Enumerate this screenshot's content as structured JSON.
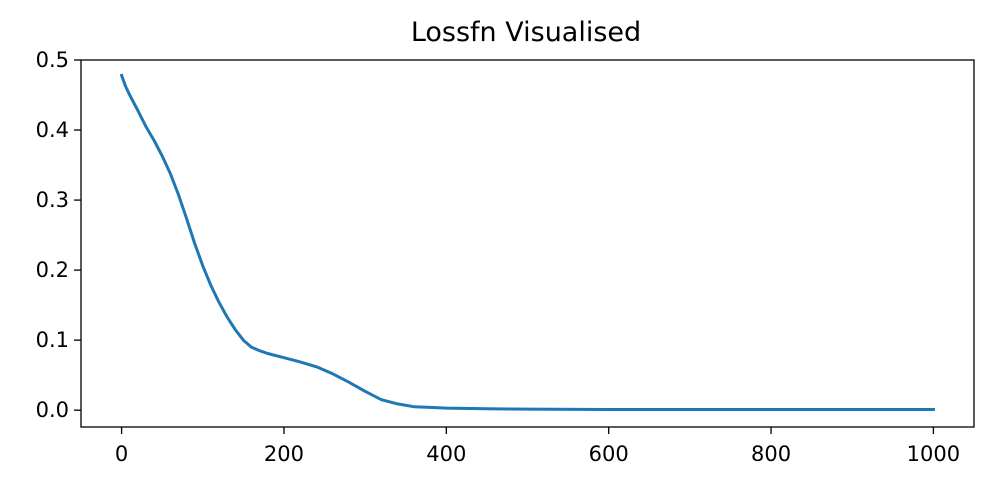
{
  "chart_data": {
    "type": "line",
    "title": "Lossfn Visualised",
    "xlabel": "",
    "ylabel": "",
    "xlim": [
      -50,
      1050
    ],
    "ylim": [
      -0.024,
      0.5
    ],
    "x_ticks": [
      0,
      200,
      400,
      600,
      800,
      1000
    ],
    "x_tick_labels": [
      "0",
      "200",
      "400",
      "600",
      "800",
      "1000"
    ],
    "y_ticks": [
      0.0,
      0.1,
      0.2,
      0.3,
      0.4,
      0.5
    ],
    "y_tick_labels": [
      "0.0",
      "0.1",
      "0.2",
      "0.3",
      "0.4",
      "0.5"
    ],
    "grid": false,
    "series": [
      {
        "color": "#1f77b4",
        "x": [
          0,
          5,
          10,
          20,
          30,
          40,
          50,
          60,
          70,
          80,
          90,
          100,
          110,
          120,
          130,
          140,
          150,
          160,
          170,
          180,
          200,
          220,
          240,
          260,
          280,
          300,
          320,
          340,
          360,
          380,
          400,
          450,
          500,
          600,
          700,
          800,
          900,
          1000
        ],
        "y": [
          0.478,
          0.462,
          0.45,
          0.428,
          0.405,
          0.385,
          0.363,
          0.338,
          0.308,
          0.274,
          0.238,
          0.206,
          0.178,
          0.154,
          0.133,
          0.115,
          0.1,
          0.09,
          0.085,
          0.081,
          0.075,
          0.069,
          0.062,
          0.052,
          0.04,
          0.027,
          0.015,
          0.009,
          0.005,
          0.004,
          0.003,
          0.002,
          0.0015,
          0.001,
          0.001,
          0.001,
          0.001,
          0.001
        ]
      }
    ]
  }
}
